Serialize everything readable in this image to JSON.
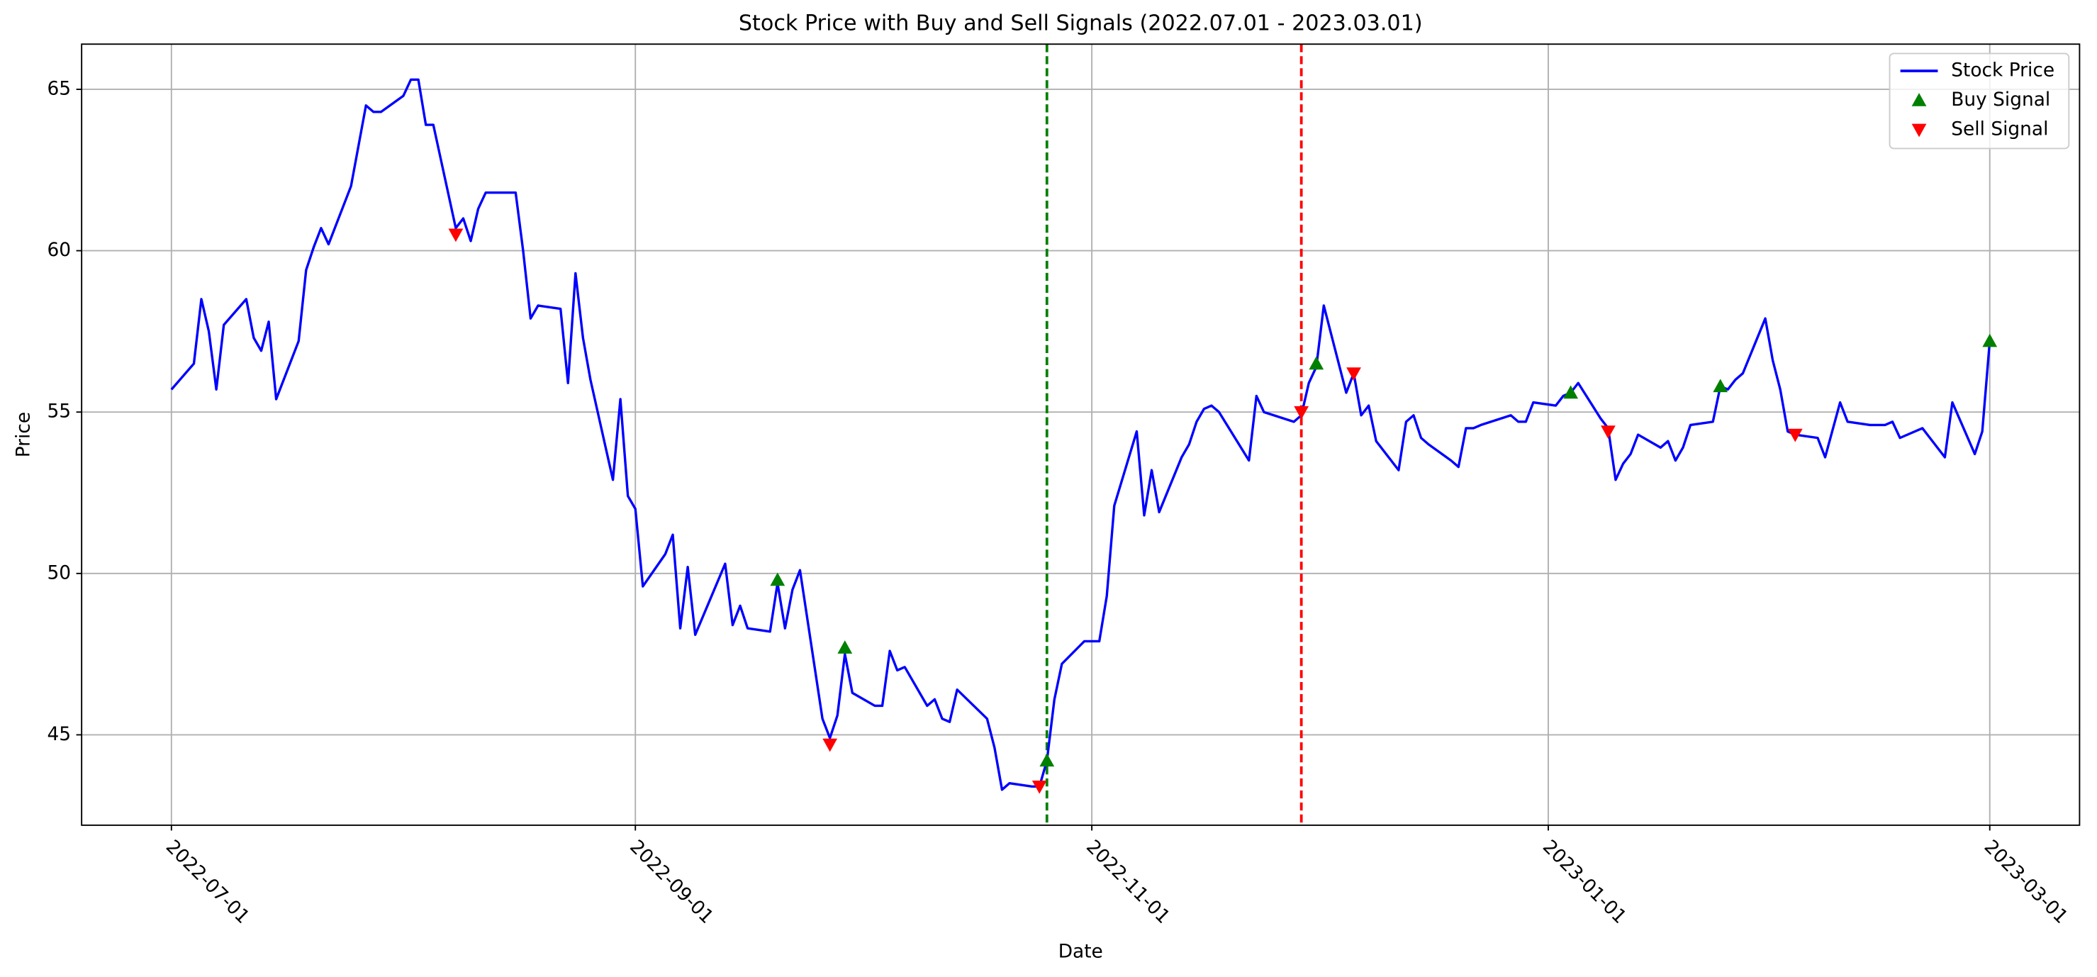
{
  "chart_data": {
    "type": "line",
    "title": "Stock Price with Buy and Sell Signals (2022.07.01 - 2023.03.01)",
    "x_label": "Date",
    "y_label": "Price",
    "xlim": [
      "2022-06-19",
      "2023-03-13"
    ],
    "xticks": [
      "2022-07-01",
      "2022-09-01",
      "2022-11-01",
      "2023-01-01",
      "2023-03-01"
    ],
    "ylim": [
      42.2,
      66.4
    ],
    "yticks": [
      45,
      50,
      55,
      60,
      65
    ],
    "grid": true,
    "legend": "upper right",
    "series": [
      {
        "name": "Stock Price",
        "color": "blue",
        "marker": "none",
        "x": [
          "2022-07-01",
          "2022-07-04",
          "2022-07-05",
          "2022-07-06",
          "2022-07-07",
          "2022-07-08",
          "2022-07-11",
          "2022-07-12",
          "2022-07-13",
          "2022-07-14",
          "2022-07-15",
          "2022-07-18",
          "2022-07-19",
          "2022-07-20",
          "2022-07-21",
          "2022-07-22",
          "2022-07-25",
          "2022-07-27",
          "2022-07-28",
          "2022-07-29",
          "2022-08-01",
          "2022-08-02",
          "2022-08-03",
          "2022-08-04",
          "2022-08-05",
          "2022-08-08",
          "2022-08-09",
          "2022-08-10",
          "2022-08-11",
          "2022-08-12",
          "2022-08-16",
          "2022-08-17",
          "2022-08-18",
          "2022-08-19",
          "2022-08-22",
          "2022-08-23",
          "2022-08-24",
          "2022-08-25",
          "2022-08-26",
          "2022-08-29",
          "2022-08-30",
          "2022-08-31",
          "2022-09-01",
          "2022-09-02",
          "2022-09-05",
          "2022-09-06",
          "2022-09-07",
          "2022-09-08",
          "2022-09-09",
          "2022-09-13",
          "2022-09-14",
          "2022-09-15",
          "2022-09-16",
          "2022-09-19",
          "2022-09-20",
          "2022-09-21",
          "2022-09-22",
          "2022-09-23",
          "2022-09-26",
          "2022-09-27",
          "2022-09-28",
          "2022-09-29",
          "2022-09-30",
          "2022-10-03",
          "2022-10-04",
          "2022-10-05",
          "2022-10-06",
          "2022-10-07",
          "2022-10-10",
          "2022-10-11",
          "2022-10-12",
          "2022-10-13",
          "2022-10-14",
          "2022-10-18",
          "2022-10-19",
          "2022-10-20",
          "2022-10-21",
          "2022-10-24",
          "2022-10-25",
          "2022-10-26",
          "2022-10-27",
          "2022-10-28",
          "2022-10-31",
          "2022-11-02",
          "2022-11-03",
          "2022-11-04",
          "2022-11-07",
          "2022-11-08",
          "2022-11-09",
          "2022-11-10",
          "2022-11-13",
          "2022-11-14",
          "2022-11-15",
          "2022-11-16",
          "2022-11-17",
          "2022-11-18",
          "2022-11-22",
          "2022-11-23",
          "2022-11-24",
          "2022-11-28",
          "2022-11-29",
          "2022-11-30",
          "2022-12-01",
          "2022-12-02",
          "2022-12-05",
          "2022-12-06",
          "2022-12-07",
          "2022-12-08",
          "2022-12-09",
          "2022-12-12",
          "2022-12-13",
          "2022-12-14",
          "2022-12-15",
          "2022-12-16",
          "2022-12-19",
          "2022-12-20",
          "2022-12-21",
          "2022-12-22",
          "2022-12-23",
          "2022-12-27",
          "2022-12-28",
          "2022-12-29",
          "2022-12-30",
          "2023-01-02",
          "2023-01-03",
          "2023-01-04",
          "2023-01-05",
          "2023-01-08",
          "2023-01-09",
          "2023-01-10",
          "2023-01-11",
          "2023-01-12",
          "2023-01-13",
          "2023-01-16",
          "2023-01-17",
          "2023-01-18",
          "2023-01-19",
          "2023-01-20",
          "2023-01-23",
          "2023-01-24",
          "2023-01-25",
          "2023-01-26",
          "2023-01-27",
          "2023-01-30",
          "2023-01-31",
          "2023-02-01",
          "2023-02-02",
          "2023-02-03",
          "2023-02-06",
          "2023-02-07",
          "2023-02-09",
          "2023-02-10",
          "2023-02-13",
          "2023-02-14",
          "2023-02-15",
          "2023-02-16",
          "2023-02-17",
          "2023-02-20",
          "2023-02-21",
          "2023-02-23",
          "2023-02-24",
          "2023-02-27",
          "2023-02-28",
          "2023-03-01"
        ],
        "values": [
          55.7,
          56.5,
          58.5,
          57.5,
          55.7,
          57.7,
          58.5,
          57.3,
          56.9,
          57.8,
          55.4,
          57.2,
          59.4,
          60.1,
          60.7,
          60.2,
          62.0,
          64.5,
          64.3,
          64.3,
          64.8,
          65.3,
          65.3,
          63.9,
          63.9,
          60.7,
          61.0,
          60.3,
          61.3,
          61.8,
          61.8,
          60.0,
          57.9,
          58.3,
          58.2,
          55.9,
          59.3,
          57.3,
          56.0,
          52.9,
          55.4,
          52.4,
          52.0,
          49.6,
          50.6,
          51.2,
          48.3,
          50.2,
          48.1,
          50.3,
          48.4,
          49.0,
          48.3,
          48.2,
          49.7,
          48.3,
          49.5,
          50.1,
          45.5,
          44.9,
          45.6,
          47.5,
          46.3,
          45.9,
          45.9,
          47.6,
          47.0,
          47.1,
          45.9,
          46.1,
          45.5,
          45.4,
          46.4,
          45.5,
          44.6,
          43.3,
          43.5,
          43.4,
          43.4,
          44.2,
          46.1,
          47.2,
          47.9,
          47.9,
          49.3,
          52.1,
          54.4,
          51.8,
          53.2,
          51.9,
          53.6,
          54.0,
          54.7,
          55.1,
          55.2,
          55.0,
          53.5,
          55.5,
          55.0,
          54.7,
          54.9,
          55.9,
          56.4,
          58.3,
          55.6,
          56.2,
          54.9,
          55.2,
          54.1,
          53.2,
          54.7,
          54.9,
          54.2,
          54.0,
          53.5,
          53.3,
          54.5,
          54.5,
          54.6,
          54.9,
          54.7,
          54.7,
          55.3,
          55.2,
          55.5,
          55.6,
          55.9,
          54.8,
          54.5,
          52.9,
          53.4,
          53.7,
          54.3,
          53.9,
          54.1,
          53.5,
          53.9,
          54.6,
          54.7,
          55.8,
          55.7,
          56.0,
          56.2,
          57.9,
          56.6,
          55.7,
          54.4,
          54.3,
          54.2,
          53.6,
          55.3,
          54.7,
          54.6,
          54.6,
          54.6,
          54.7,
          54.2,
          54.5,
          54.2,
          53.6,
          55.3,
          53.7,
          54.4,
          57.2
        ]
      },
      {
        "name": "Buy Signal",
        "color": "green",
        "marker": "^",
        "x": [
          "2022-09-20",
          "2022-09-29",
          "2022-10-26",
          "2022-12-01",
          "2023-01-04",
          "2023-01-24",
          "2023-03-01"
        ],
        "values": [
          49.8,
          47.7,
          44.2,
          56.5,
          55.6,
          55.8,
          57.2
        ]
      },
      {
        "name": "Sell Signal",
        "color": "red",
        "marker": "v",
        "x": [
          "2022-08-08",
          "2022-09-27",
          "2022-10-25",
          "2022-11-29",
          "2022-12-06",
          "2023-01-09",
          "2023-02-03"
        ],
        "values": [
          60.5,
          44.7,
          43.4,
          55.0,
          56.2,
          54.4,
          54.3
        ]
      }
    ],
    "vlines": [
      {
        "x": "2022-10-26",
        "color": "green"
      },
      {
        "x": "2022-11-29",
        "color": "red"
      }
    ]
  }
}
